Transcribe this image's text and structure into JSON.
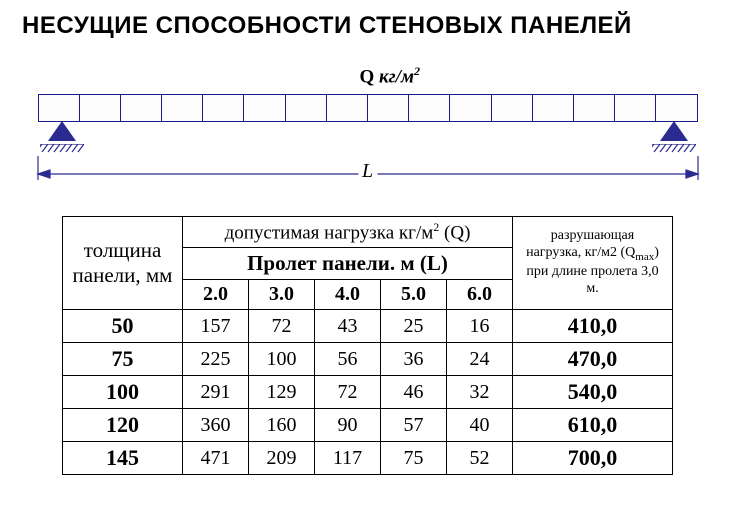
{
  "title": "НЕСУЩИЕ СПОСОБНОСТИ СТЕНОВЫХ ПАНЕЛЕЙ",
  "diagram": {
    "segments": 16,
    "load_label_prefix": "Q ",
    "load_label_unit": "кг/м",
    "load_label_exp": "2",
    "length_label": "L",
    "beam_border_color": "#1a1a8a",
    "support_color": "#2a2a90"
  },
  "table": {
    "col_thickness": "толщина панели, мм",
    "hdr_allowable_load": "допустимая нагрузка кг/м",
    "hdr_allowable_load_exp": "2",
    "hdr_allowable_load_suffix": " (Q)",
    "hdr_span": "Пролет панели. м (L)",
    "hdr_breaking_l1": "разрушающая",
    "hdr_breaking_l2": "нагрузка, кг/м2 (Q",
    "hdr_breaking_sub": "max",
    "hdr_breaking_l2b": ")",
    "hdr_breaking_l3": "при длине пролета 3,0",
    "hdr_breaking_l4": "м.",
    "span_values": [
      "2.0",
      "3.0",
      "4.0",
      "5.0",
      "6.0"
    ],
    "rows": [
      {
        "thickness": "50",
        "v": [
          "157",
          "72",
          "43",
          "25",
          "16"
        ],
        "qmax": "410,0"
      },
      {
        "thickness": "75",
        "v": [
          "225",
          "100",
          "56",
          "36",
          "24"
        ],
        "qmax": "470,0"
      },
      {
        "thickness": "100",
        "v": [
          "291",
          "129",
          "72",
          "46",
          "32"
        ],
        "qmax": "540,0"
      },
      {
        "thickness": "120",
        "v": [
          "360",
          "160",
          "90",
          "57",
          "40"
        ],
        "qmax": "610,0"
      },
      {
        "thickness": "145",
        "v": [
          "471",
          "209",
          "117",
          "75",
          "52"
        ],
        "qmax": "700,0"
      }
    ]
  }
}
